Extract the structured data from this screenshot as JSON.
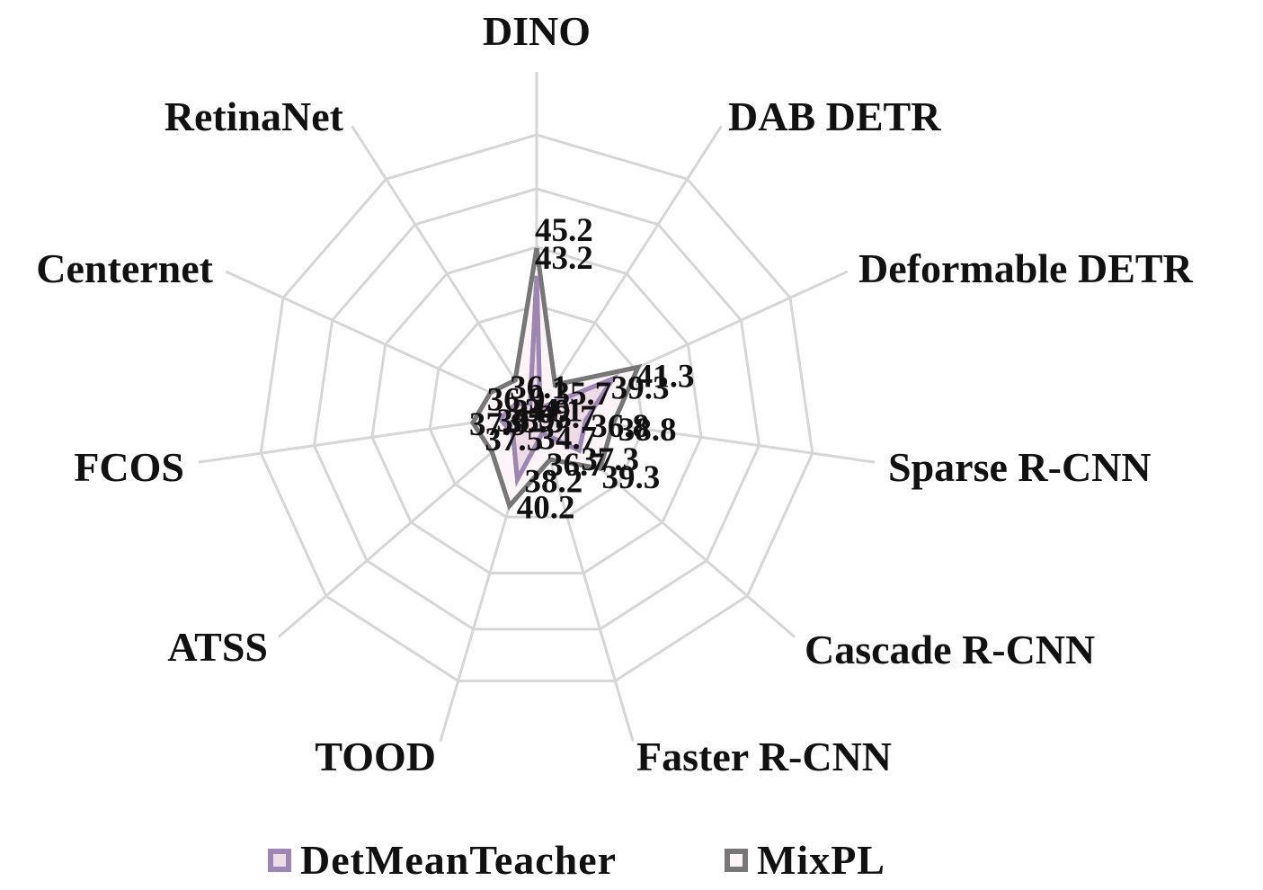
{
  "chart_data": {
    "type": "radar",
    "categories": [
      "DINO",
      "DAB DETR",
      "Deformable DETR",
      "Sparse R-CNN",
      "Cascade R-CNN",
      "Faster R-CNN",
      "TOOD",
      "ATSS",
      "FCOS",
      "Centernet",
      "RetinaNet"
    ],
    "series": [
      {
        "name": "DetMeanTeacher",
        "values": [
          43.2,
          33.7,
          39.3,
          36.8,
          37.3,
          34.7,
          38.2,
          35.5,
          35.9,
          34.9,
          34.1
        ],
        "color": "#9e86b3",
        "fill": "#eddbe6"
      },
      {
        "name": "MixPL",
        "values": [
          45.2,
          35.7,
          41.3,
          38.8,
          39.3,
          36.7,
          40.2,
          37.5,
          37.9,
          36.9,
          36.1
        ],
        "color": "#777777",
        "fill": "#fcf4f6"
      }
    ],
    "grid": true,
    "legend_position": "bottom"
  },
  "colors": {
    "grid": "#d6d6d6",
    "text": "#111111"
  }
}
